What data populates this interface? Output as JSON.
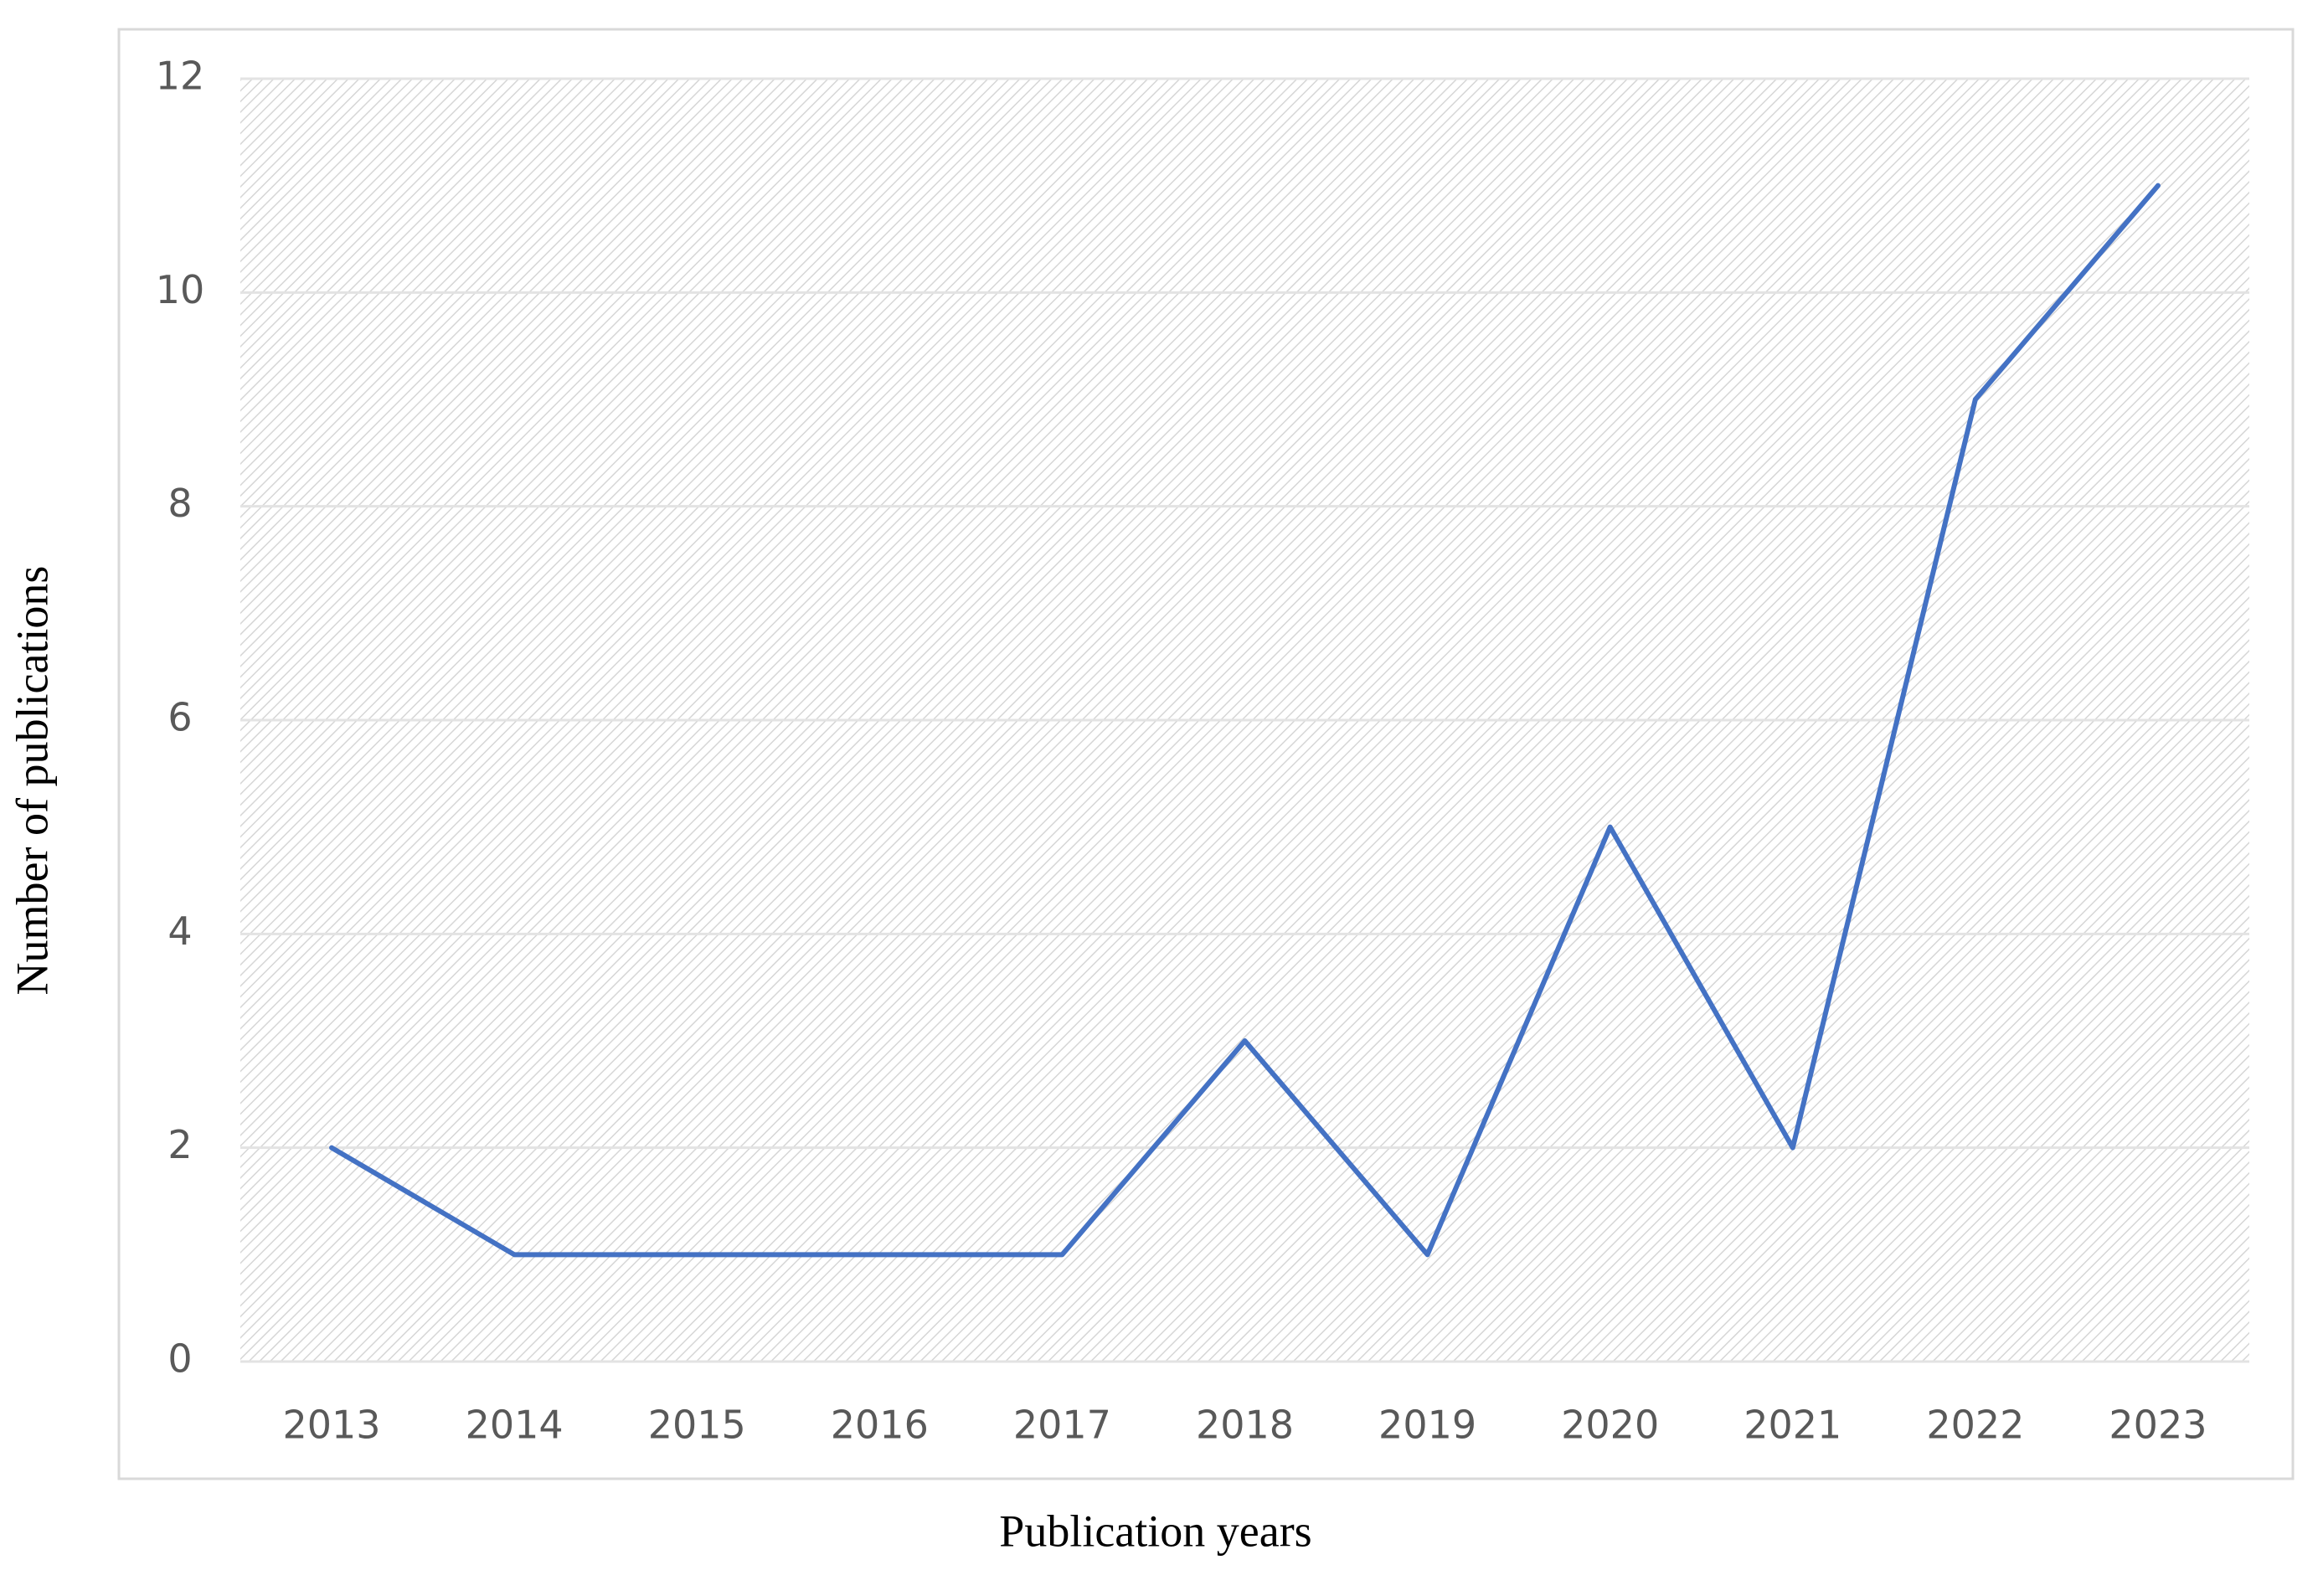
{
  "chart_data": {
    "type": "line",
    "x_label": "Publication years",
    "y_label": "Number of publications",
    "categories": [
      "2013",
      "2014",
      "2015",
      "2016",
      "2017",
      "2018",
      "2019",
      "2020",
      "2021",
      "2022",
      "2023"
    ],
    "values": [
      2,
      1,
      1,
      1,
      1,
      3,
      1,
      5,
      2,
      9,
      11
    ],
    "color": "#4472c4",
    "ylim": [
      0,
      12
    ],
    "yticks": [
      0,
      2,
      4,
      6,
      8,
      10,
      12
    ],
    "grid": true
  }
}
